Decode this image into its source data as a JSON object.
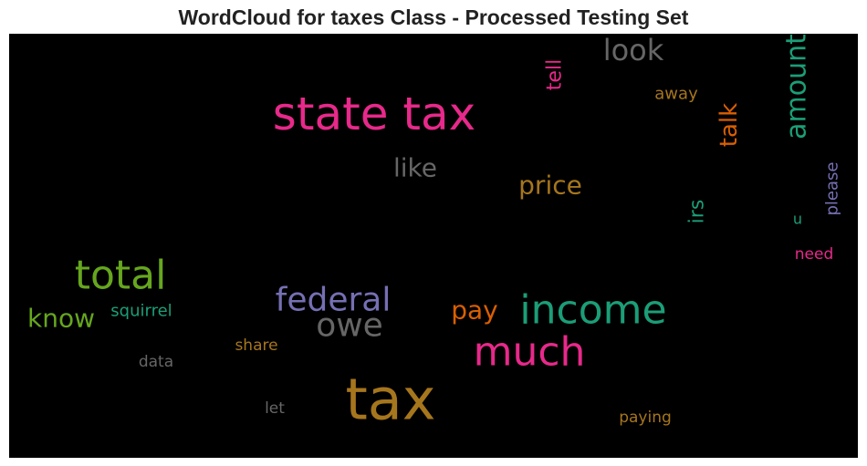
{
  "chart_data": {
    "type": "wordcloud",
    "title": "WordCloud for taxes Class - Processed Testing Set",
    "background": "#000000",
    "words": [
      {
        "text": "tax",
        "color": "#a6761d"
      },
      {
        "text": "state tax",
        "color": "#e7298a"
      },
      {
        "text": "much",
        "color": "#e7298a"
      },
      {
        "text": "income",
        "color": "#1b9e77"
      },
      {
        "text": "total",
        "color": "#66a61e"
      },
      {
        "text": "federal",
        "color": "#7570b3"
      },
      {
        "text": "owe",
        "color": "#666666"
      },
      {
        "text": "look",
        "color": "#666666"
      },
      {
        "text": "amount",
        "color": "#1b9e77"
      },
      {
        "text": "like",
        "color": "#666666"
      },
      {
        "text": "price",
        "color": "#a6761d"
      },
      {
        "text": "know",
        "color": "#66a61e"
      },
      {
        "text": "pay",
        "color": "#d95f02"
      },
      {
        "text": "talk",
        "color": "#d95f02"
      },
      {
        "text": "tell",
        "color": "#e7298a"
      },
      {
        "text": "irs",
        "color": "#1b9e77"
      },
      {
        "text": "please",
        "color": "#7570b3"
      },
      {
        "text": "away",
        "color": "#a6761d"
      },
      {
        "text": "squirrel",
        "color": "#1b9e77"
      },
      {
        "text": "share",
        "color": "#a6761d"
      },
      {
        "text": "data",
        "color": "#666666"
      },
      {
        "text": "let",
        "color": "#666666"
      },
      {
        "text": "paying",
        "color": "#a6761d"
      },
      {
        "text": "need",
        "color": "#e7298a"
      },
      {
        "text": "u",
        "color": "#1b9e77"
      }
    ]
  }
}
